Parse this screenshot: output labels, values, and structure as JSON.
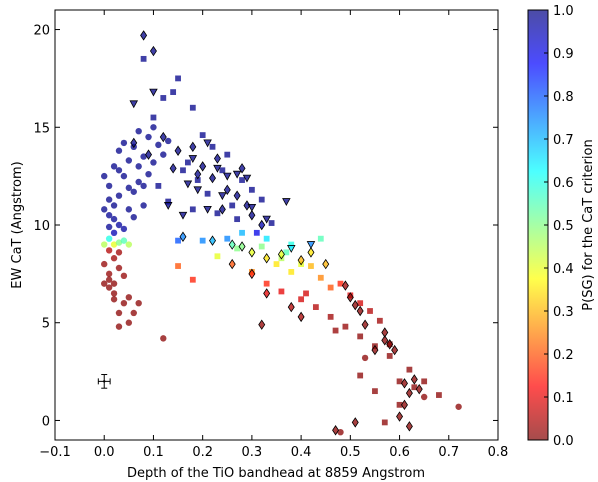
{
  "chart_data": {
    "type": "scatter",
    "title": "",
    "xlabel": "Depth of the TiO bandhead at 8859 Angstrom",
    "ylabel": "EW CaT (Angstrom)",
    "xlim": [
      -0.1,
      0.8
    ],
    "ylim": [
      -1,
      21
    ],
    "xticks": [
      "−0.1",
      "0.0",
      "0.1",
      "0.2",
      "0.3",
      "0.4",
      "0.5",
      "0.6",
      "0.7",
      "0.8"
    ],
    "xtick_values": [
      -0.1,
      0.0,
      0.1,
      0.2,
      0.3,
      0.4,
      0.5,
      0.6,
      0.7,
      0.8
    ],
    "yticks": [
      "0",
      "5",
      "10",
      "15",
      "20"
    ],
    "ytick_values": [
      0,
      5,
      10,
      15,
      20
    ],
    "grid": false,
    "colorbar": {
      "label": "P(SG) for the CaT criterion",
      "ticks": [
        "0.0",
        "0.1",
        "0.2",
        "0.3",
        "0.4",
        "0.5",
        "0.6",
        "0.7",
        "0.8",
        "0.9",
        "1.0"
      ],
      "tick_values": [
        0.0,
        0.1,
        0.2,
        0.3,
        0.4,
        0.5,
        0.6,
        0.7,
        0.8,
        0.9,
        1.0
      ],
      "colormap": [
        "#7f0000",
        "#ff0000",
        "#ff8000",
        "#ffff00",
        "#80ff80",
        "#00ffff",
        "#0080ff",
        "#0000ff",
        "#00007f"
      ]
    },
    "error_bar": {
      "x": 0.0,
      "y": 2.0,
      "xerr": 0.012,
      "yerr": 0.35
    },
    "series": [
      {
        "marker": "circle",
        "points": [
          [
            0.01,
            7.5,
            0.02
          ],
          [
            0.02,
            7.0,
            0.01
          ],
          [
            0.0,
            8.0,
            0.02
          ],
          [
            0.03,
            7.8,
            0.02
          ],
          [
            0.01,
            6.8,
            0.01
          ],
          [
            0.02,
            6.5,
            0.01
          ],
          [
            0.04,
            6.0,
            0.01
          ],
          [
            0.03,
            5.5,
            0.01
          ],
          [
            0.05,
            6.3,
            0.01
          ],
          [
            0.01,
            7.2,
            0.01
          ],
          [
            0.02,
            8.3,
            0.03
          ],
          [
            0.03,
            8.6,
            0.03
          ],
          [
            0.0,
            7.0,
            0.01
          ],
          [
            0.04,
            7.4,
            0.02
          ],
          [
            0.05,
            5.0,
            0.01
          ],
          [
            0.03,
            4.8,
            0.01
          ],
          [
            0.06,
            5.5,
            0.01
          ],
          [
            0.07,
            6.0,
            0.01
          ],
          [
            0.02,
            6.2,
            0.01
          ],
          [
            0.01,
            8.7,
            0.05
          ],
          [
            0.02,
            9.0,
            0.4
          ],
          [
            0.0,
            9.0,
            0.45
          ],
          [
            0.03,
            9.1,
            0.5
          ],
          [
            0.04,
            9.2,
            0.55
          ],
          [
            0.01,
            9.3,
            0.6
          ],
          [
            0.05,
            9.0,
            0.45
          ],
          [
            0.02,
            9.6,
            0.95
          ],
          [
            0.01,
            10.5,
            0.98
          ],
          [
            0.02,
            11.0,
            0.99
          ],
          [
            0.03,
            11.5,
            0.99
          ],
          [
            0.01,
            12.0,
            0.99
          ],
          [
            0.0,
            12.5,
            0.99
          ],
          [
            0.02,
            13.0,
            0.99
          ],
          [
            0.04,
            12.5,
            0.99
          ],
          [
            0.03,
            10.0,
            0.97
          ],
          [
            0.05,
            10.8,
            0.99
          ],
          [
            0.06,
            11.7,
            0.99
          ],
          [
            0.07,
            12.2,
            0.99
          ],
          [
            0.05,
            13.3,
            0.99
          ],
          [
            0.03,
            13.8,
            0.99
          ],
          [
            0.08,
            13.5,
            0.99
          ],
          [
            0.06,
            14.0,
            0.99
          ],
          [
            0.09,
            14.5,
            0.99
          ],
          [
            0.07,
            14.8,
            0.99
          ],
          [
            0.04,
            14.2,
            0.99
          ],
          [
            0.1,
            15.0,
            0.99
          ],
          [
            0.05,
            11.9,
            0.99
          ],
          [
            0.02,
            10.3,
            0.98
          ],
          [
            0.04,
            9.8,
            0.97
          ],
          [
            0.06,
            10.4,
            0.99
          ],
          [
            0.08,
            11.0,
            0.99
          ],
          [
            0.09,
            12.6,
            0.99
          ],
          [
            0.1,
            13.2,
            0.99
          ],
          [
            0.11,
            14.1,
            0.99
          ],
          [
            0.12,
            13.6,
            0.99
          ],
          [
            0.13,
            14.3,
            0.99
          ],
          [
            0.01,
            11.3,
            0.99
          ],
          [
            0.0,
            10.8,
            0.99
          ],
          [
            0.03,
            12.8,
            0.99
          ],
          [
            0.07,
            13.0,
            0.99
          ],
          [
            0.08,
            12.0,
            0.99
          ],
          [
            0.01,
            9.9,
            0.98
          ],
          [
            0.12,
            4.2,
            0.01
          ],
          [
            0.53,
            3.2,
            0.01
          ],
          [
            0.72,
            0.7,
            0.01
          ],
          [
            0.65,
            1.2,
            0.01
          ],
          [
            0.48,
            -0.6,
            0.01
          ]
        ]
      },
      {
        "marker": "square",
        "points": [
          [
            0.08,
            18.5,
            0.99
          ],
          [
            0.15,
            17.5,
            0.99
          ],
          [
            0.12,
            16.5,
            0.99
          ],
          [
            0.18,
            16.0,
            0.99
          ],
          [
            0.1,
            15.5,
            0.99
          ],
          [
            0.14,
            16.8,
            0.99
          ],
          [
            0.2,
            14.6,
            0.99
          ],
          [
            0.22,
            14.0,
            0.99
          ],
          [
            0.17,
            13.2,
            0.99
          ],
          [
            0.19,
            12.3,
            0.99
          ],
          [
            0.21,
            11.6,
            0.99
          ],
          [
            0.24,
            12.8,
            0.99
          ],
          [
            0.26,
            11.0,
            0.99
          ],
          [
            0.23,
            10.6,
            0.99
          ],
          [
            0.28,
            12.3,
            0.99
          ],
          [
            0.3,
            11.8,
            0.99
          ],
          [
            0.32,
            11.3,
            0.99
          ],
          [
            0.25,
            13.6,
            0.99
          ],
          [
            0.16,
            12.8,
            0.99
          ],
          [
            0.13,
            11.2,
            0.99
          ],
          [
            0.11,
            12.0,
            0.99
          ],
          [
            0.18,
            10.8,
            0.99
          ],
          [
            0.27,
            10.3,
            0.99
          ],
          [
            0.34,
            10.1,
            0.99
          ],
          [
            0.31,
            9.6,
            0.9
          ],
          [
            0.15,
            9.2,
            0.8
          ],
          [
            0.2,
            9.2,
            0.75
          ],
          [
            0.25,
            9.3,
            0.75
          ],
          [
            0.28,
            9.6,
            0.7
          ],
          [
            0.33,
            9.3,
            0.65
          ],
          [
            0.38,
            9.0,
            0.6
          ],
          [
            0.37,
            8.6,
            0.55
          ],
          [
            0.32,
            8.9,
            0.5
          ],
          [
            0.36,
            8.3,
            0.45
          ],
          [
            0.4,
            8.0,
            0.4
          ],
          [
            0.38,
            7.6,
            0.35
          ],
          [
            0.42,
            7.9,
            0.3
          ],
          [
            0.44,
            7.3,
            0.25
          ],
          [
            0.46,
            6.8,
            0.2
          ],
          [
            0.48,
            7.0,
            0.15
          ],
          [
            0.5,
            6.4,
            0.1
          ],
          [
            0.52,
            6.0,
            0.08
          ],
          [
            0.54,
            5.6,
            0.05
          ],
          [
            0.56,
            5.1,
            0.03
          ],
          [
            0.3,
            7.6,
            0.25
          ],
          [
            0.33,
            7.0,
            0.15
          ],
          [
            0.36,
            6.6,
            0.1
          ],
          [
            0.4,
            6.2,
            0.08
          ],
          [
            0.43,
            5.8,
            0.05
          ],
          [
            0.46,
            5.3,
            0.03
          ],
          [
            0.49,
            4.8,
            0.02
          ],
          [
            0.52,
            4.3,
            0.01
          ],
          [
            0.55,
            3.8,
            0.01
          ],
          [
            0.58,
            3.3,
            0.01
          ],
          [
            0.62,
            2.6,
            0.01
          ],
          [
            0.65,
            2.0,
            0.01
          ],
          [
            0.68,
            1.3,
            0.01
          ],
          [
            0.52,
            2.3,
            0.01
          ],
          [
            0.55,
            1.5,
            0.01
          ],
          [
            0.6,
            0.8,
            0.01
          ],
          [
            0.63,
            1.7,
            0.01
          ],
          [
            0.58,
            3.9,
            0.01
          ],
          [
            0.44,
            9.3,
            0.55
          ],
          [
            0.35,
            8.0,
            0.35
          ],
          [
            0.27,
            8.8,
            0.5
          ],
          [
            0.23,
            8.4,
            0.4
          ],
          [
            0.15,
            7.9,
            0.2
          ],
          [
            0.18,
            7.2,
            0.15
          ],
          [
            0.41,
            6.5,
            0.08
          ],
          [
            0.47,
            4.6,
            0.02
          ],
          [
            0.6,
            2.0,
            0.01
          ],
          [
            0.57,
            -0.1,
            0.01
          ]
        ]
      },
      {
        "marker": "diamond",
        "points": [
          [
            0.08,
            19.7,
            0.99
          ],
          [
            0.1,
            18.9,
            0.99
          ],
          [
            0.12,
            14.5,
            0.99
          ],
          [
            0.18,
            14.0,
            0.99
          ],
          [
            0.15,
            13.8,
            0.99
          ],
          [
            0.2,
            13.0,
            0.99
          ],
          [
            0.22,
            12.4,
            0.99
          ],
          [
            0.25,
            11.8,
            0.99
          ],
          [
            0.27,
            11.5,
            0.99
          ],
          [
            0.29,
            11.0,
            0.99
          ],
          [
            0.24,
            10.8,
            0.99
          ],
          [
            0.3,
            10.5,
            0.99
          ],
          [
            0.32,
            10.0,
            0.95
          ],
          [
            0.16,
            9.4,
            0.75
          ],
          [
            0.22,
            9.2,
            0.7
          ],
          [
            0.26,
            9.0,
            0.55
          ],
          [
            0.28,
            8.9,
            0.5
          ],
          [
            0.3,
            8.6,
            0.4
          ],
          [
            0.33,
            8.3,
            0.35
          ],
          [
            0.36,
            8.5,
            0.4
          ],
          [
            0.4,
            8.2,
            0.3
          ],
          [
            0.42,
            8.6,
            0.35
          ],
          [
            0.45,
            8.0,
            0.3
          ],
          [
            0.26,
            8.0,
            0.2
          ],
          [
            0.3,
            7.5,
            0.15
          ],
          [
            0.33,
            6.5,
            0.1
          ],
          [
            0.38,
            5.8,
            0.05
          ],
          [
            0.4,
            5.3,
            0.04
          ],
          [
            0.49,
            6.9,
            0.03
          ],
          [
            0.5,
            6.3,
            0.02
          ],
          [
            0.52,
            5.6,
            0.01
          ],
          [
            0.53,
            4.9,
            0.01
          ],
          [
            0.51,
            5.9,
            0.01
          ],
          [
            0.55,
            3.6,
            0.01
          ],
          [
            0.57,
            4.1,
            0.01
          ],
          [
            0.58,
            3.9,
            0.01
          ],
          [
            0.59,
            3.6,
            0.01
          ],
          [
            0.61,
            1.9,
            0.01
          ],
          [
            0.62,
            1.4,
            0.01
          ],
          [
            0.63,
            2.1,
            0.01
          ],
          [
            0.61,
            0.8,
            0.01
          ],
          [
            0.62,
            -0.3,
            0.01
          ],
          [
            0.64,
            1.6,
            0.01
          ],
          [
            0.6,
            0.2,
            0.01
          ],
          [
            0.47,
            -0.5,
            0.01
          ],
          [
            0.51,
            -0.1,
            0.01
          ],
          [
            0.32,
            4.9,
            0.02
          ],
          [
            0.57,
            4.5,
            0.01
          ],
          [
            0.06,
            14.2,
            0.99
          ],
          [
            0.09,
            13.6,
            0.99
          ],
          [
            0.14,
            12.9,
            0.99
          ],
          [
            0.19,
            12.6,
            0.99
          ],
          [
            0.23,
            13.4,
            0.99
          ],
          [
            0.28,
            12.9,
            0.99
          ]
        ]
      },
      {
        "marker": "triangle-down",
        "points": [
          [
            0.1,
            16.8,
            0.99
          ],
          [
            0.06,
            16.2,
            0.99
          ],
          [
            0.18,
            13.4,
            0.99
          ],
          [
            0.23,
            12.9,
            0.99
          ],
          [
            0.25,
            12.5,
            0.99
          ],
          [
            0.27,
            12.6,
            0.99
          ],
          [
            0.29,
            12.4,
            0.99
          ],
          [
            0.24,
            11.5,
            0.99
          ],
          [
            0.3,
            10.9,
            0.99
          ],
          [
            0.37,
            11.2,
            0.99
          ],
          [
            0.42,
            9.0,
            0.75
          ],
          [
            0.38,
            8.8,
            0.65
          ],
          [
            0.33,
            10.3,
            0.99
          ],
          [
            0.21,
            10.8,
            0.99
          ],
          [
            0.16,
            10.5,
            0.99
          ],
          [
            0.13,
            11.0,
            0.99
          ],
          [
            0.19,
            11.8,
            0.99
          ],
          [
            0.17,
            12.1,
            0.99
          ],
          [
            0.21,
            14.2,
            0.99
          ]
        ]
      }
    ]
  }
}
